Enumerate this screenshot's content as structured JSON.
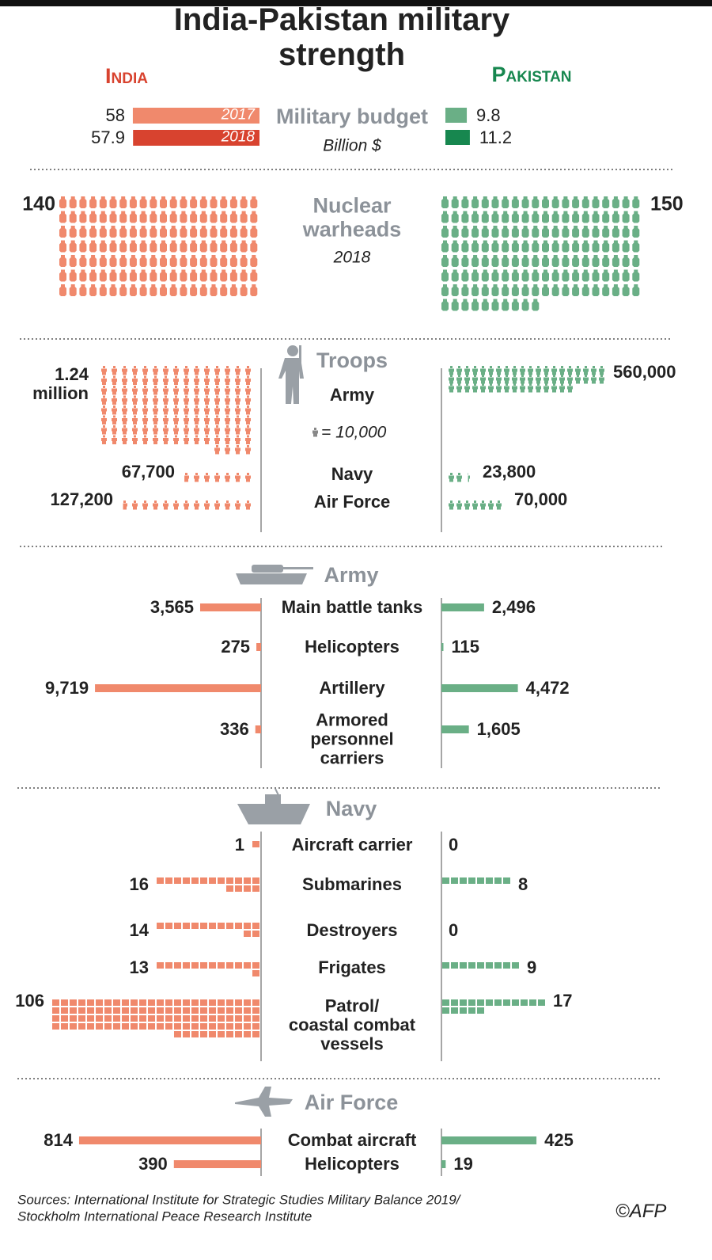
{
  "title": "India-Pakistan military strength",
  "countries": [
    "India",
    "Pakistan"
  ],
  "colors": {
    "india": "#f0896c",
    "india_dark": "#d8432f",
    "pakistan": "#6aaf86",
    "pakistan_dark": "#17874f",
    "heading": "#8c9299"
  },
  "budget": {
    "label": "Military budget",
    "unit": "Billion $",
    "years": [
      "2017",
      "2018"
    ],
    "india": [
      58,
      57.9
    ],
    "pakistan": [
      9.8,
      11.2
    ]
  },
  "nuclear": {
    "label": "Nuclear\nwarheads",
    "year": "2018",
    "india": 140,
    "pakistan": 150
  },
  "troops": {
    "label": "Troops",
    "icon_value": {
      "value": 10000,
      "label": "= 10,000"
    },
    "rows": [
      {
        "name": "Army",
        "india": {
          "value": 1240000,
          "label": "1.24\nmillion"
        },
        "pakistan": {
          "value": 560000,
          "label": "560,000"
        }
      },
      {
        "name": "Navy",
        "india": {
          "value": 67700,
          "label": "67,700"
        },
        "pakistan": {
          "value": 23800,
          "label": "23,800"
        }
      },
      {
        "name": "Air Force",
        "india": {
          "value": 127200,
          "label": "127,200"
        },
        "pakistan": {
          "value": 70000,
          "label": "70,000"
        }
      }
    ]
  },
  "army": {
    "label": "Army",
    "rows": [
      {
        "name": "Main battle tanks",
        "india": {
          "value": 3565,
          "label": "3,565"
        },
        "pakistan": {
          "value": 2496,
          "label": "2,496"
        }
      },
      {
        "name": "Helicopters",
        "india": 275,
        "pakistan": 115
      },
      {
        "name": "Artillery",
        "india": {
          "value": 9719,
          "label": "9,719"
        },
        "pakistan": {
          "value": 4472,
          "label": "4,472"
        }
      },
      {
        "name": "Armored\npersonnel\ncarriers",
        "india": 336,
        "pakistan": {
          "value": 1605,
          "label": "1,605"
        }
      }
    ]
  },
  "navy": {
    "label": "Navy",
    "rows": [
      {
        "name": "Aircraft carrier",
        "india": 1,
        "pakistan": 0
      },
      {
        "name": "Submarines",
        "india": 16,
        "pakistan": 8
      },
      {
        "name": "Destroyers",
        "india": 14,
        "pakistan": 0
      },
      {
        "name": "Frigates",
        "india": 13,
        "pakistan": 9
      },
      {
        "name": "Patrol/\ncoastal combat\nvessels",
        "india": 106,
        "pakistan": 17
      }
    ]
  },
  "air_force": {
    "label": "Air Force",
    "rows": [
      {
        "name": "Combat aircraft",
        "india": 814,
        "pakistan": 425
      },
      {
        "name": "Helicopters",
        "india": 390,
        "pakistan": 19
      }
    ]
  },
  "sources": [
    "Sources:  International Institute for Strategic Studies Military Balance 2019/",
    "Stockholm International Peace Research Institute"
  ],
  "credit": "©AFP"
}
